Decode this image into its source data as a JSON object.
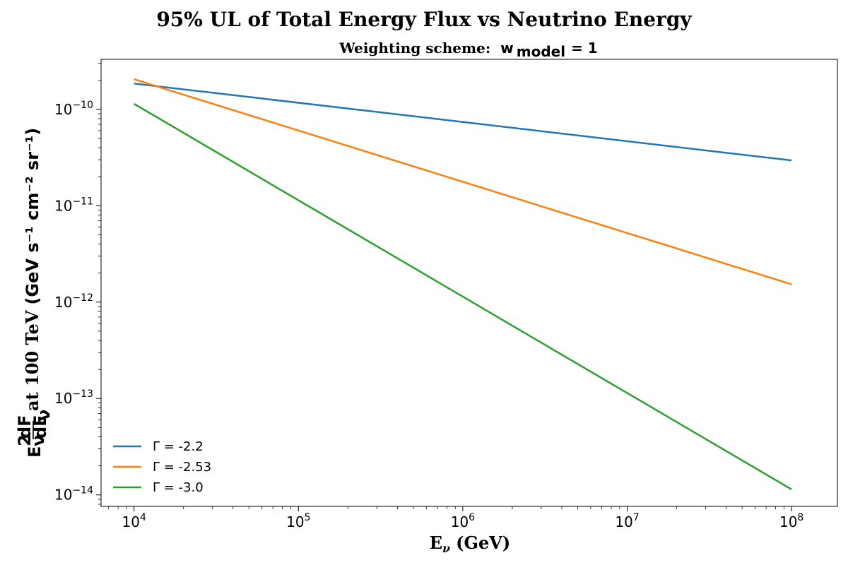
{
  "chart_data": {
    "type": "line",
    "title": "95% UL of Total Energy Flux vs Neutrino Energy",
    "subtitle": {
      "prefix": "Weighting scheme:",
      "symbol": "w",
      "subscript": "model",
      "equals": "= 1"
    },
    "xlabel": {
      "prefix": "E",
      "subscript": "ν",
      "unit": "(GeV)"
    },
    "ylabel": {
      "fraction_base": "E",
      "fraction_sup": "2",
      "fraction_sub": "ν",
      "numerator": "dF",
      "denominator": "dE",
      "denominator_sub": "ν",
      "middle": "at 100 TeV",
      "unit": "(GeV s⁻¹ cm⁻² sr⁻¹)"
    },
    "x_scale": "log",
    "y_scale": "log",
    "xlim": [
      6300,
      190000000
    ],
    "ylim": [
      7.6e-15,
      3.3e-10
    ],
    "x_ticks": [
      {
        "value": 10000,
        "base": "10",
        "exp": "4"
      },
      {
        "value": 100000,
        "base": "10",
        "exp": "5"
      },
      {
        "value": 1000000,
        "base": "10",
        "exp": "6"
      },
      {
        "value": 10000000,
        "base": "10",
        "exp": "7"
      },
      {
        "value": 100000000,
        "base": "10",
        "exp": "8"
      }
    ],
    "y_ticks": [
      {
        "value": 1e-14,
        "base": "10",
        "exp": "−14"
      },
      {
        "value": 1e-13,
        "base": "10",
        "exp": "−13"
      },
      {
        "value": 1e-12,
        "base": "10",
        "exp": "−12"
      },
      {
        "value": 1e-11,
        "base": "10",
        "exp": "−11"
      },
      {
        "value": 1e-10,
        "base": "10",
        "exp": "−10"
      }
    ],
    "grid": false,
    "legend_position": "lower-left",
    "series": [
      {
        "name": "Γ = -2.2",
        "color": "#1f77b4",
        "x": [
          10000,
          100000000
        ],
        "y": [
          1.85e-10,
          2.95e-11
        ]
      },
      {
        "name": "Γ = -2.53",
        "color": "#ff7f0e",
        "x": [
          10000,
          100000000
        ],
        "y": [
          2.05e-10,
          1.53e-12
        ]
      },
      {
        "name": "Γ = -3.0",
        "color": "#2ca02c",
        "x": [
          10000,
          100000000
        ],
        "y": [
          1.14e-10,
          1.14e-14
        ]
      }
    ]
  }
}
